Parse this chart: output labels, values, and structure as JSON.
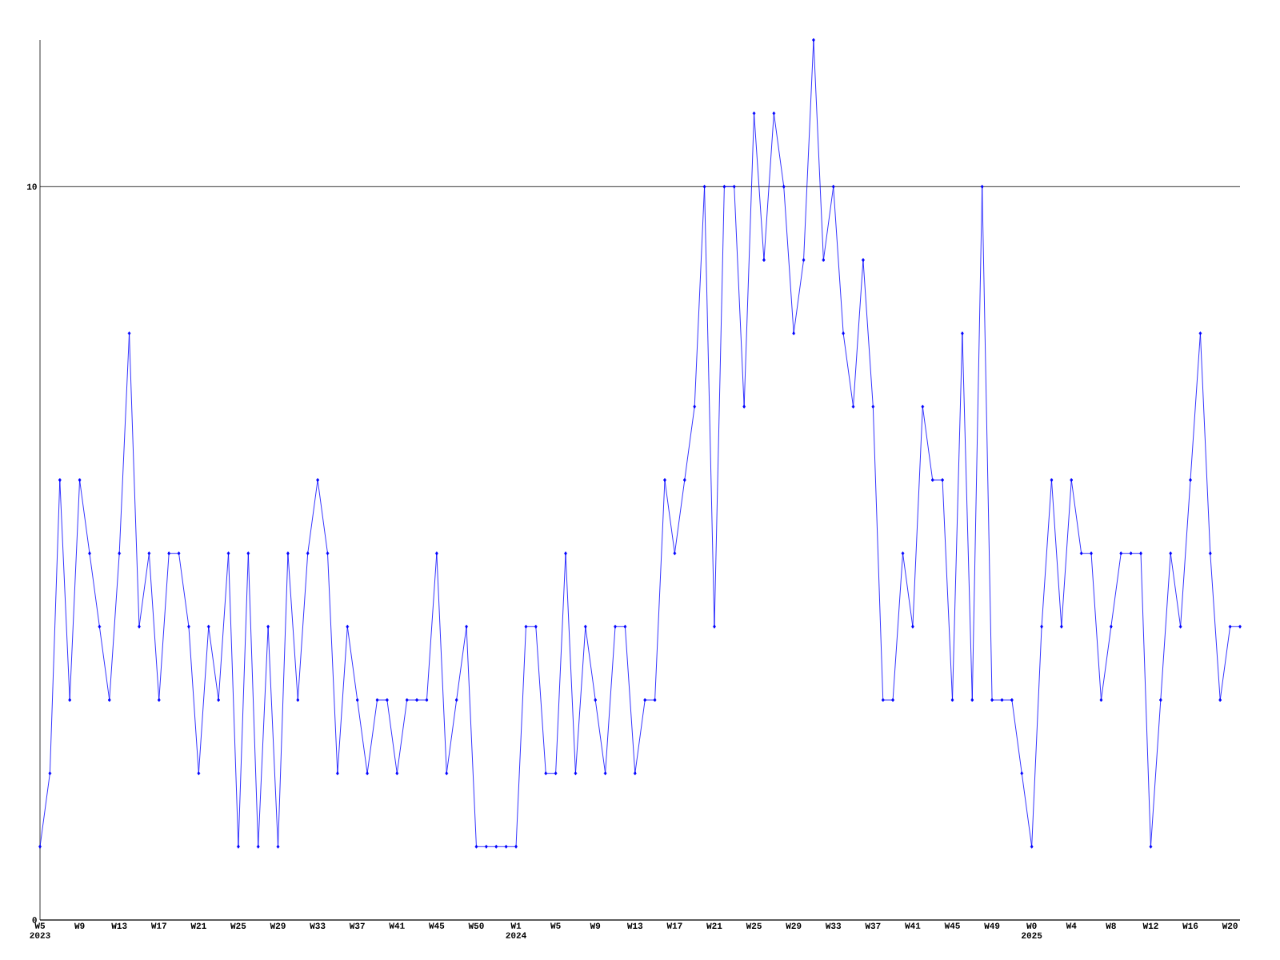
{
  "chart_data": {
    "type": "line",
    "categories": [
      "W5 2023",
      null,
      null,
      null,
      "W9",
      null,
      null,
      null,
      "W13",
      null,
      null,
      null,
      "W17",
      null,
      null,
      null,
      "W21",
      null,
      null,
      null,
      "W25",
      null,
      null,
      null,
      "W29",
      null,
      null,
      null,
      "W33",
      null,
      null,
      null,
      "W37",
      null,
      null,
      null,
      "W41",
      null,
      null,
      null,
      "W45",
      null,
      null,
      null,
      "W50",
      null,
      null,
      null,
      "W1 2024",
      null,
      null,
      null,
      "W5",
      null,
      null,
      null,
      "W9",
      null,
      null,
      null,
      "W13",
      null,
      null,
      null,
      "W17",
      null,
      null,
      null,
      "W21",
      null,
      null,
      null,
      "W25",
      null,
      null,
      null,
      "W29",
      null,
      null,
      null,
      "W33",
      null,
      null,
      null,
      "W37",
      null,
      null,
      null,
      "W41",
      null,
      null,
      null,
      "W45",
      null,
      null,
      null,
      "W49",
      null,
      null,
      null,
      "W0 2025",
      null,
      null,
      null,
      "W4",
      null,
      null,
      null,
      "W8",
      null,
      null,
      null,
      "W12",
      null,
      null,
      null,
      "W16",
      null,
      null,
      null,
      "W20",
      null
    ],
    "values": [
      1,
      2,
      6,
      3,
      6,
      5,
      4,
      3,
      5,
      8,
      4,
      5,
      3,
      5,
      5,
      4,
      2,
      4,
      3,
      5,
      1,
      5,
      1,
      4,
      1,
      5,
      3,
      5,
      6,
      5,
      2,
      4,
      3,
      2,
      3,
      3,
      2,
      3,
      3,
      3,
      5,
      2,
      3,
      4,
      1,
      1,
      1,
      1,
      1,
      4,
      4,
      2,
      2,
      5,
      2,
      4,
      3,
      2,
      4,
      4,
      2,
      3,
      3,
      6,
      5,
      6,
      7,
      10,
      4,
      10,
      10,
      7,
      11,
      9,
      11,
      10,
      8,
      9,
      12,
      9,
      10,
      8,
      7,
      9,
      7,
      3,
      3,
      5,
      4,
      7,
      6,
      6,
      3,
      8,
      3,
      10,
      3,
      3,
      3,
      2,
      1,
      4,
      6,
      4,
      6,
      5,
      5,
      3,
      4,
      5,
      5,
      5,
      1,
      3,
      5,
      4,
      6,
      8,
      5,
      3,
      4,
      4
    ],
    "color": "#0000ff",
    "marker": "diamond",
    "ylim": [
      0,
      12
    ],
    "yticks": [
      0,
      10
    ],
    "grid": "y"
  }
}
